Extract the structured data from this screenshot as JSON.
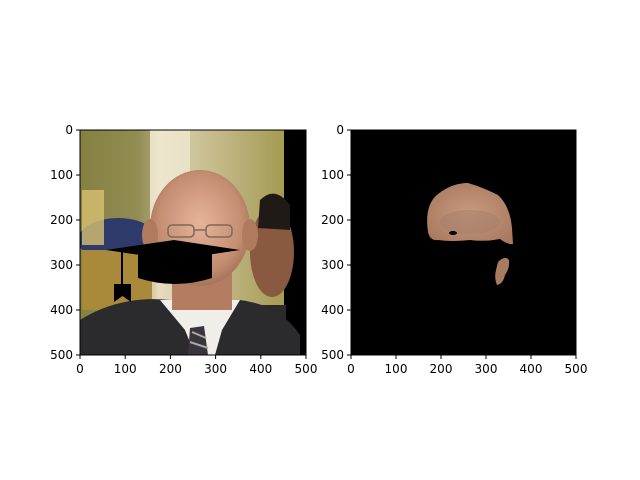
{
  "chart_data": [
    {
      "type": "image",
      "subject": "photo",
      "xlim": [
        0,
        500
      ],
      "ylim": [
        500,
        0
      ],
      "xticks": [
        0,
        100,
        200,
        300,
        400,
        500
      ],
      "yticks": [
        0,
        100,
        200,
        300,
        400,
        500
      ],
      "grid": false
    },
    {
      "type": "image",
      "subject": "face-mask",
      "xlim": [
        0,
        500
      ],
      "ylim": [
        500,
        0
      ],
      "xticks": [
        0,
        100,
        200,
        300,
        400,
        500
      ],
      "yticks": [
        0,
        100,
        200,
        300,
        400,
        500
      ],
      "grid": false
    }
  ],
  "colors": {
    "background": "#ffffff",
    "mask_background": "#000000",
    "skin": "#b98a6c",
    "overlay": "#000000"
  }
}
